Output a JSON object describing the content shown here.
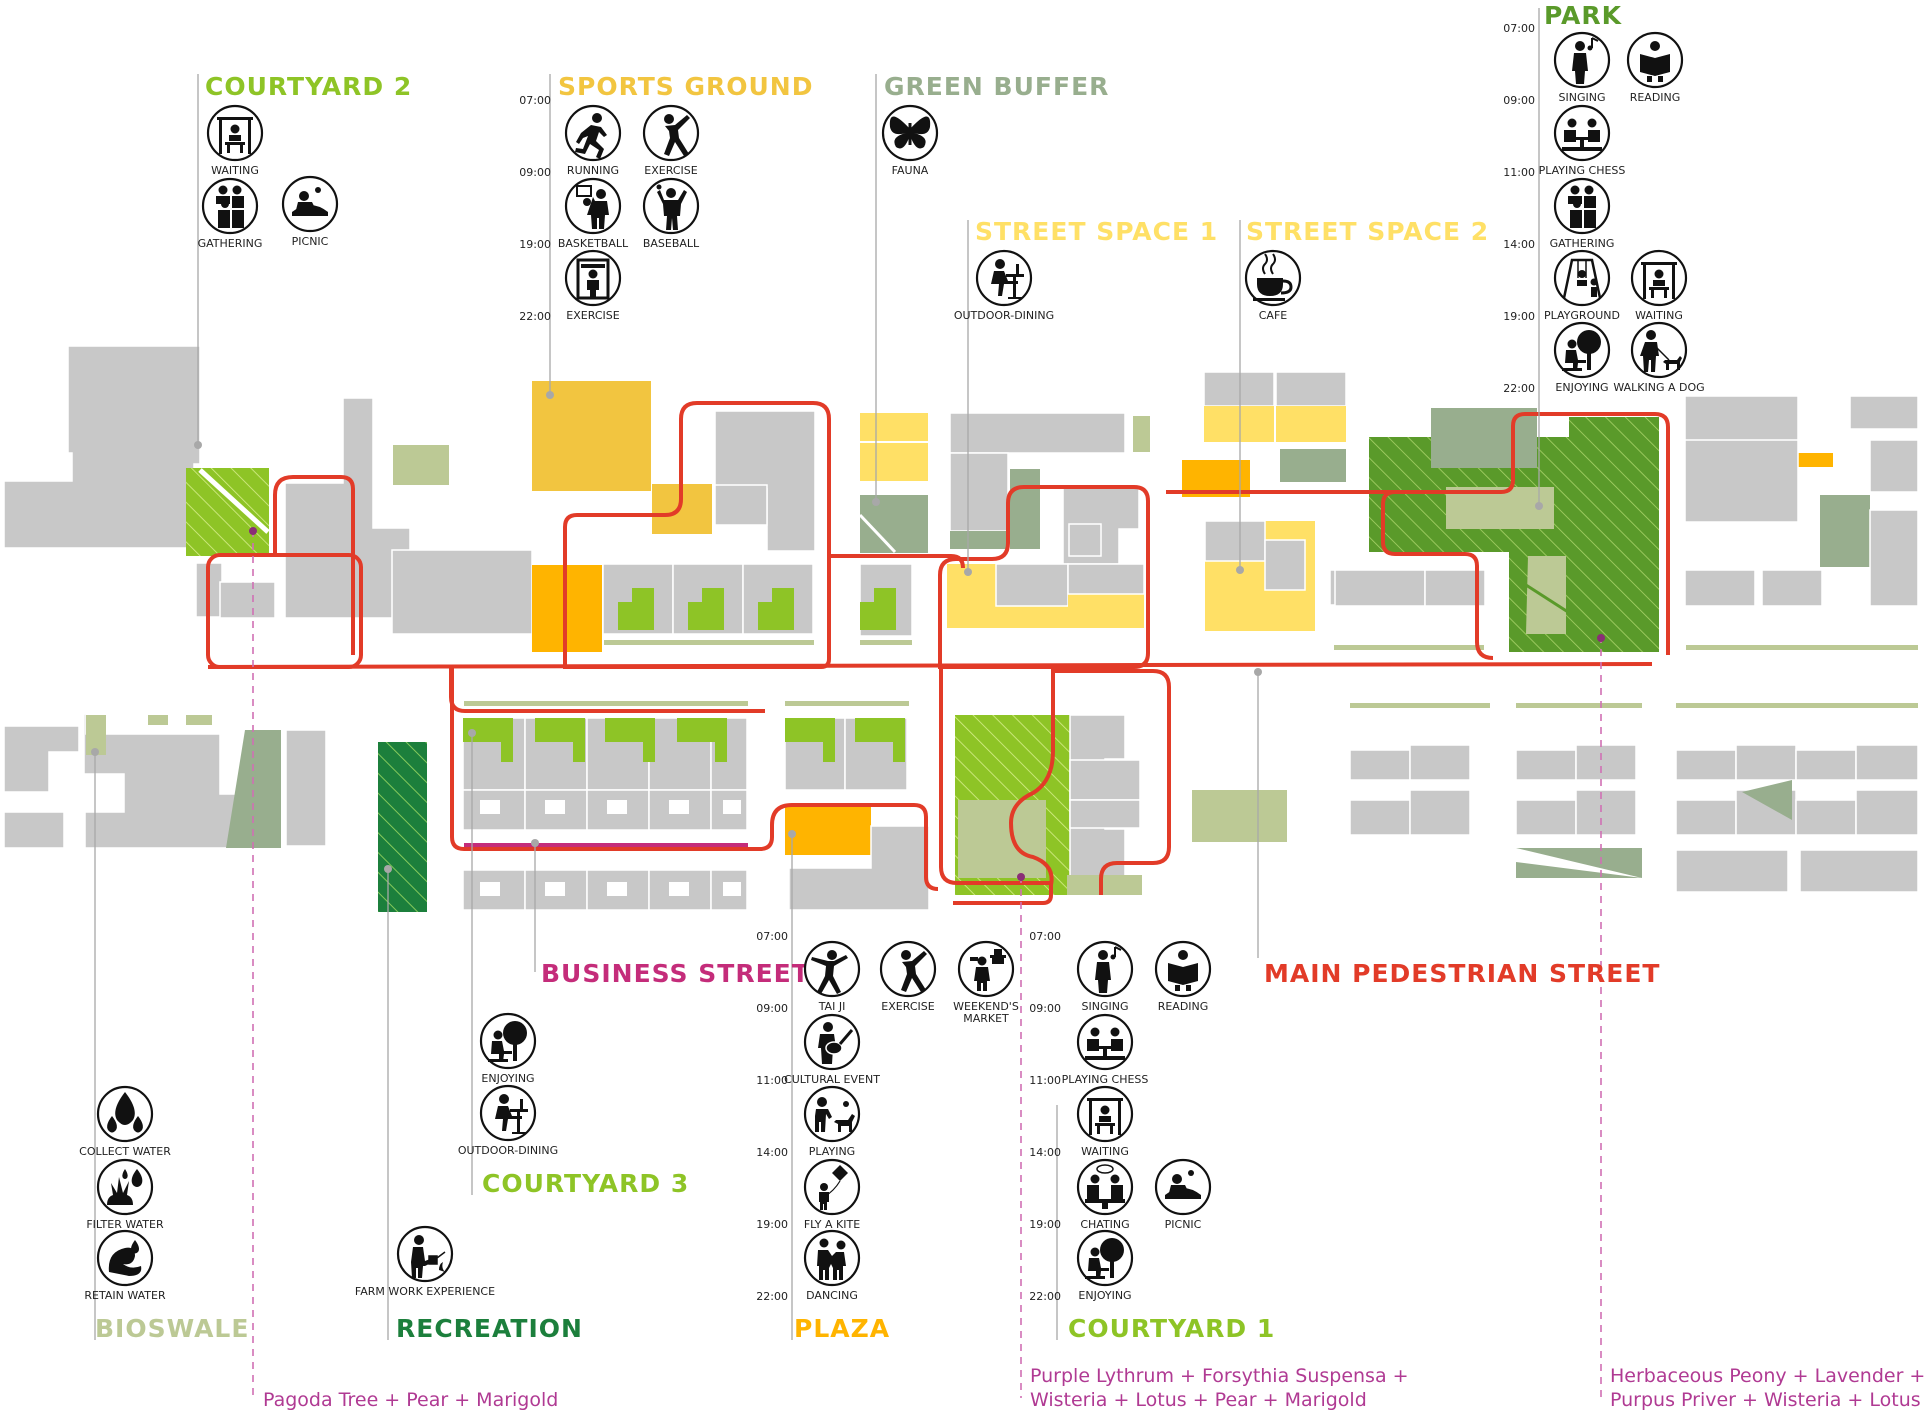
{
  "colors": {
    "courtyard": "#8ec426",
    "park": "#5a9a2a",
    "recreation": "#1c7f3c",
    "bioswale": "#bcc995",
    "sports": "#f2c540",
    "plaza": "#ffb400",
    "street_space": "#ffe066",
    "green_buffer": "#98ae8e",
    "business_street": "#c42c7a",
    "main_pedestrian": "#e23b28",
    "building": "#c8c8c8",
    "plant_text": "#b03a93"
  },
  "zones": {
    "courtyard2": {
      "title": "COURTYARD 2",
      "activities": [
        {
          "label": "WAITING",
          "icon": "bench-icon"
        },
        {
          "label": "GATHERING",
          "icon": "gathering-icon"
        },
        {
          "label": "PICNIC",
          "icon": "picnic-icon"
        }
      ]
    },
    "sports": {
      "title": "SPORTS GROUND",
      "times": [
        "07:00",
        "09:00",
        "19:00",
        "22:00"
      ],
      "activities": [
        {
          "label": "RUNNING",
          "icon": "running-icon"
        },
        {
          "label": "EXERCISE",
          "icon": "exercise-icon"
        },
        {
          "label": "BASKETBALL",
          "icon": "basketball-icon"
        },
        {
          "label": "BASEBALL",
          "icon": "baseball-icon"
        },
        {
          "label": "EXERCISE",
          "icon": "gym-icon"
        }
      ]
    },
    "green_buffer": {
      "title": "GREEN BUFFER",
      "activities": [
        {
          "label": "FAUNA",
          "icon": "butterfly-icon"
        }
      ]
    },
    "street1": {
      "title": "STREET SPACE 1",
      "activities": [
        {
          "label": "OUTDOOR-DINING",
          "icon": "dining-icon"
        }
      ]
    },
    "street2": {
      "title": "STREET SPACE 2",
      "activities": [
        {
          "label": "CAFE",
          "icon": "coffee-cup-icon"
        }
      ]
    },
    "park": {
      "title": "PARK",
      "times": [
        "07:00",
        "09:00",
        "11:00",
        "14:00",
        "19:00",
        "22:00"
      ],
      "activities": [
        {
          "label": "SINGING",
          "icon": "singing-icon"
        },
        {
          "label": "READING",
          "icon": "reading-icon"
        },
        {
          "label": "PLAYING CHESS",
          "icon": "chess-icon"
        },
        {
          "label": "GATHERING",
          "icon": "gathering-icon"
        },
        {
          "label": "PLAYGROUND",
          "icon": "swing-icon"
        },
        {
          "label": "WAITING",
          "icon": "bench-icon"
        },
        {
          "label": "ENJOYING",
          "icon": "tree-sitting-icon"
        },
        {
          "label": "WALKING A DOG",
          "icon": "dog-walking-icon"
        }
      ]
    },
    "business": {
      "title": "BUSINESS STREET"
    },
    "main": {
      "title": "MAIN PEDESTRIAN STREET"
    },
    "plaza": {
      "title": "PLAZA",
      "times": [
        "07:00",
        "09:00",
        "11:00",
        "14:00",
        "19:00",
        "22:00"
      ],
      "activities": [
        {
          "label": "TAI JI",
          "icon": "taiji-icon"
        },
        {
          "label": "EXERCISE",
          "icon": "exercise-icon"
        },
        {
          "label": "WEEKEND'S",
          "label2": "MARKET",
          "icon": "market-icon"
        },
        {
          "label": "CULTURAL EVENT",
          "icon": "guitar-icon"
        },
        {
          "label": "PLAYING",
          "icon": "dog-playing-icon"
        },
        {
          "label": "FLY A KITE",
          "icon": "kite-icon"
        },
        {
          "label": "DANCING",
          "icon": "dancing-icon"
        }
      ]
    },
    "courtyard1": {
      "title": "COURTYARD 1",
      "times": [
        "07:00",
        "09:00",
        "11:00",
        "14:00",
        "19:00",
        "22:00"
      ],
      "activities": [
        {
          "label": "SINGING",
          "icon": "singing-icon"
        },
        {
          "label": "READING",
          "icon": "reading-icon"
        },
        {
          "label": "PLAYING CHESS",
          "icon": "chess-icon"
        },
        {
          "label": "WAITING",
          "icon": "bench-icon"
        },
        {
          "label": "CHATING",
          "icon": "chatting-icon"
        },
        {
          "label": "PICNIC",
          "icon": "picnic-icon"
        },
        {
          "label": "ENJOYING",
          "icon": "tree-sitting-icon"
        }
      ]
    },
    "courtyard3": {
      "title": "COURTYARD 3",
      "activities": [
        {
          "label": "ENJOYING",
          "icon": "tree-sitting-icon"
        },
        {
          "label": "OUTDOOR-DINING",
          "icon": "dining-icon"
        }
      ]
    },
    "bioswale": {
      "title": "BIOSWALE",
      "activities": [
        {
          "label": "COLLECT WATER",
          "icon": "water-drops-icon"
        },
        {
          "label": "FILTER WATER",
          "icon": "filter-water-icon"
        },
        {
          "label": "RETAIN WATER",
          "icon": "retain-water-icon"
        }
      ]
    },
    "recreation": {
      "title": "RECREATION",
      "activities": [
        {
          "label": "FARM WORK EXPERIENCE",
          "icon": "watering-can-icon"
        }
      ]
    }
  },
  "plants": {
    "left": "Pagoda Tree + Pear + Marigold",
    "middle_1": "Purple Lythrum + Forsythia Suspensa +",
    "middle_2": "Wisteria + Lotus + Pear + Marigold",
    "right_1": "Herbaceous Peony + Lavender +",
    "right_2": "Purpus Priver + Wisteria + Lotus"
  }
}
